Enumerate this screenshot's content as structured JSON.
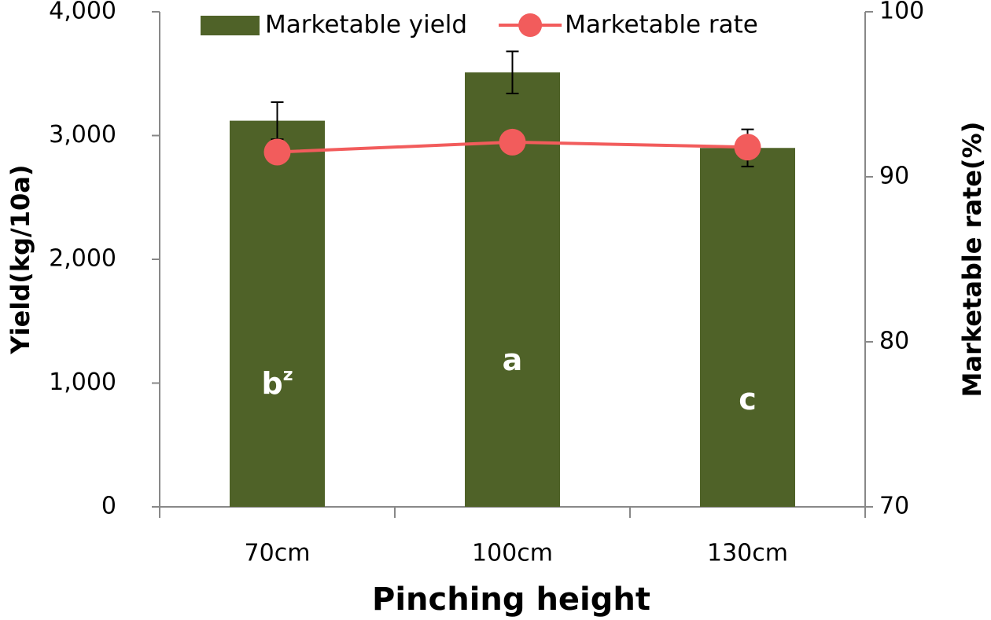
{
  "chart_data": {
    "type": "combo",
    "x_label": "Pinching height",
    "y_label": "Yield(kg/10a)",
    "y2_label": "Marketable rate(%)",
    "categories": [
      "70cm",
      "100cm",
      "130cm"
    ],
    "ylim": [
      0,
      4000
    ],
    "yticks": [
      0,
      {
        "value": 1000,
        "label": "1,000"
      },
      {
        "value": 2000,
        "label": "2,000"
      },
      {
        "value": 3000,
        "label": "3,000"
      },
      {
        "value": 4000,
        "label": "4,000"
      }
    ],
    "y2lim": [
      70,
      100
    ],
    "y2ticks": [
      70,
      80,
      90,
      100
    ],
    "grid": false,
    "legend": "top",
    "series": [
      {
        "name": "Marketable yield",
        "type": "bar",
        "color": "#4f6228",
        "values": [
          3120,
          3510,
          2900
        ],
        "errors": [
          150,
          170,
          150
        ]
      },
      {
        "name": "Marketable rate",
        "type": "line",
        "axis": "y2",
        "color": "#f25c5c",
        "values": [
          91.5,
          92.1,
          91.8
        ]
      }
    ],
    "annotations": [
      {
        "label": "b",
        "superscript": "z"
      },
      {
        "label": "a"
      },
      {
        "label": "c"
      }
    ]
  }
}
